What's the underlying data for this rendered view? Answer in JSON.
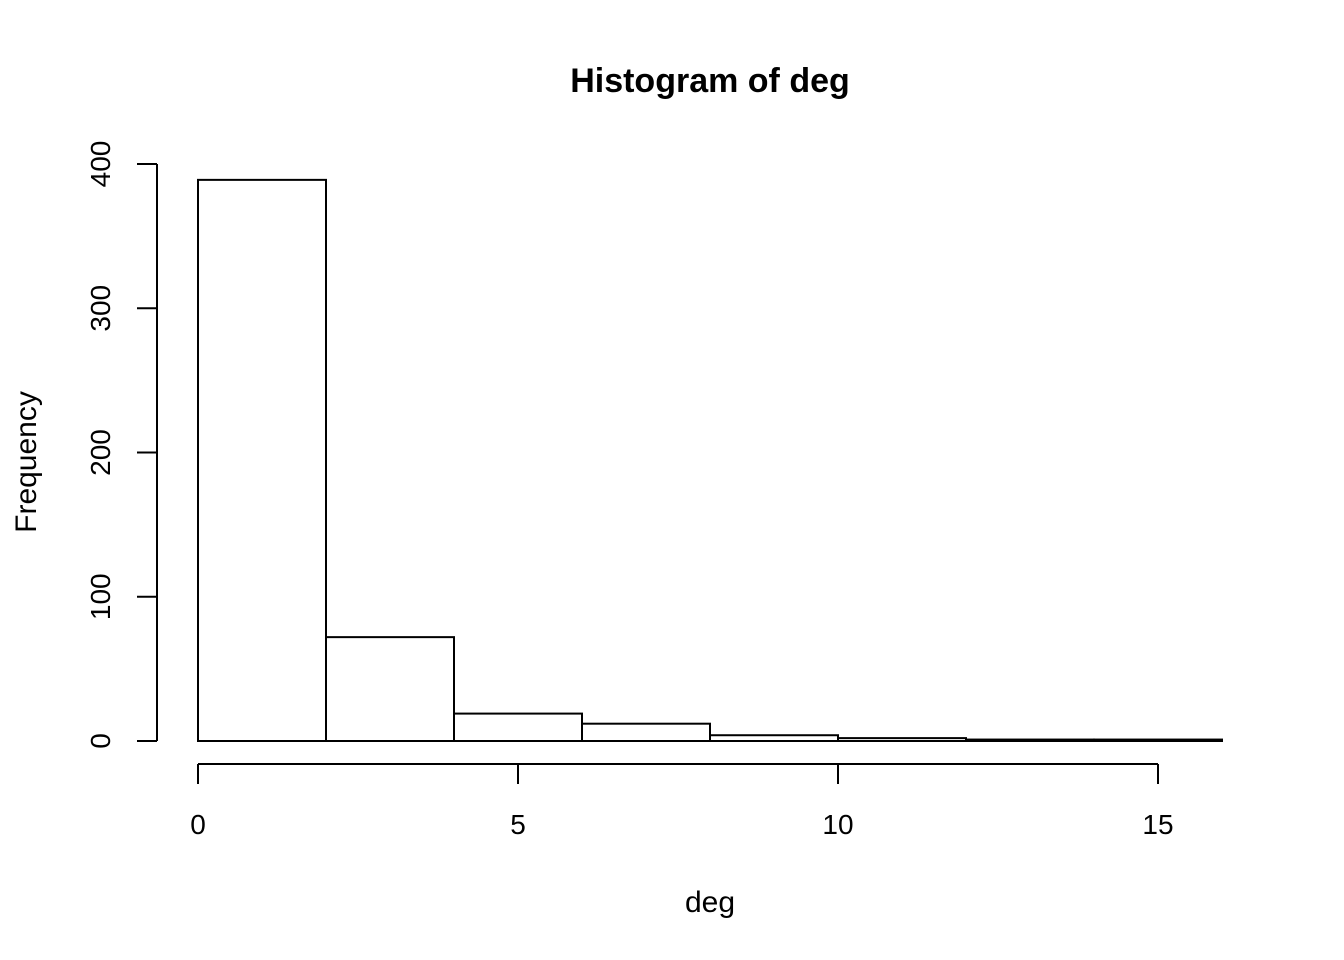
{
  "chart_data": {
    "type": "bar",
    "title": "Histogram of deg",
    "xlabel": "deg",
    "ylabel": "Frequency",
    "bins": [
      {
        "start": 0,
        "end": 2,
        "count": 389
      },
      {
        "start": 2,
        "end": 4,
        "count": 72
      },
      {
        "start": 4,
        "end": 6,
        "count": 19
      },
      {
        "start": 6,
        "end": 8,
        "count": 12
      },
      {
        "start": 8,
        "end": 10,
        "count": 4
      },
      {
        "start": 10,
        "end": 12,
        "count": 2
      },
      {
        "start": 12,
        "end": 14,
        "count": 1
      },
      {
        "start": 14,
        "end": 16,
        "count": 1
      }
    ],
    "xticks": [
      0,
      5,
      10,
      15
    ],
    "yticks": [
      0,
      100,
      200,
      300,
      400
    ],
    "xlim": [
      0,
      16
    ],
    "ylim": [
      0,
      400
    ],
    "grid": false,
    "legend": "none",
    "bar_fill": "#ffffff",
    "bar_stroke": "#000000"
  }
}
